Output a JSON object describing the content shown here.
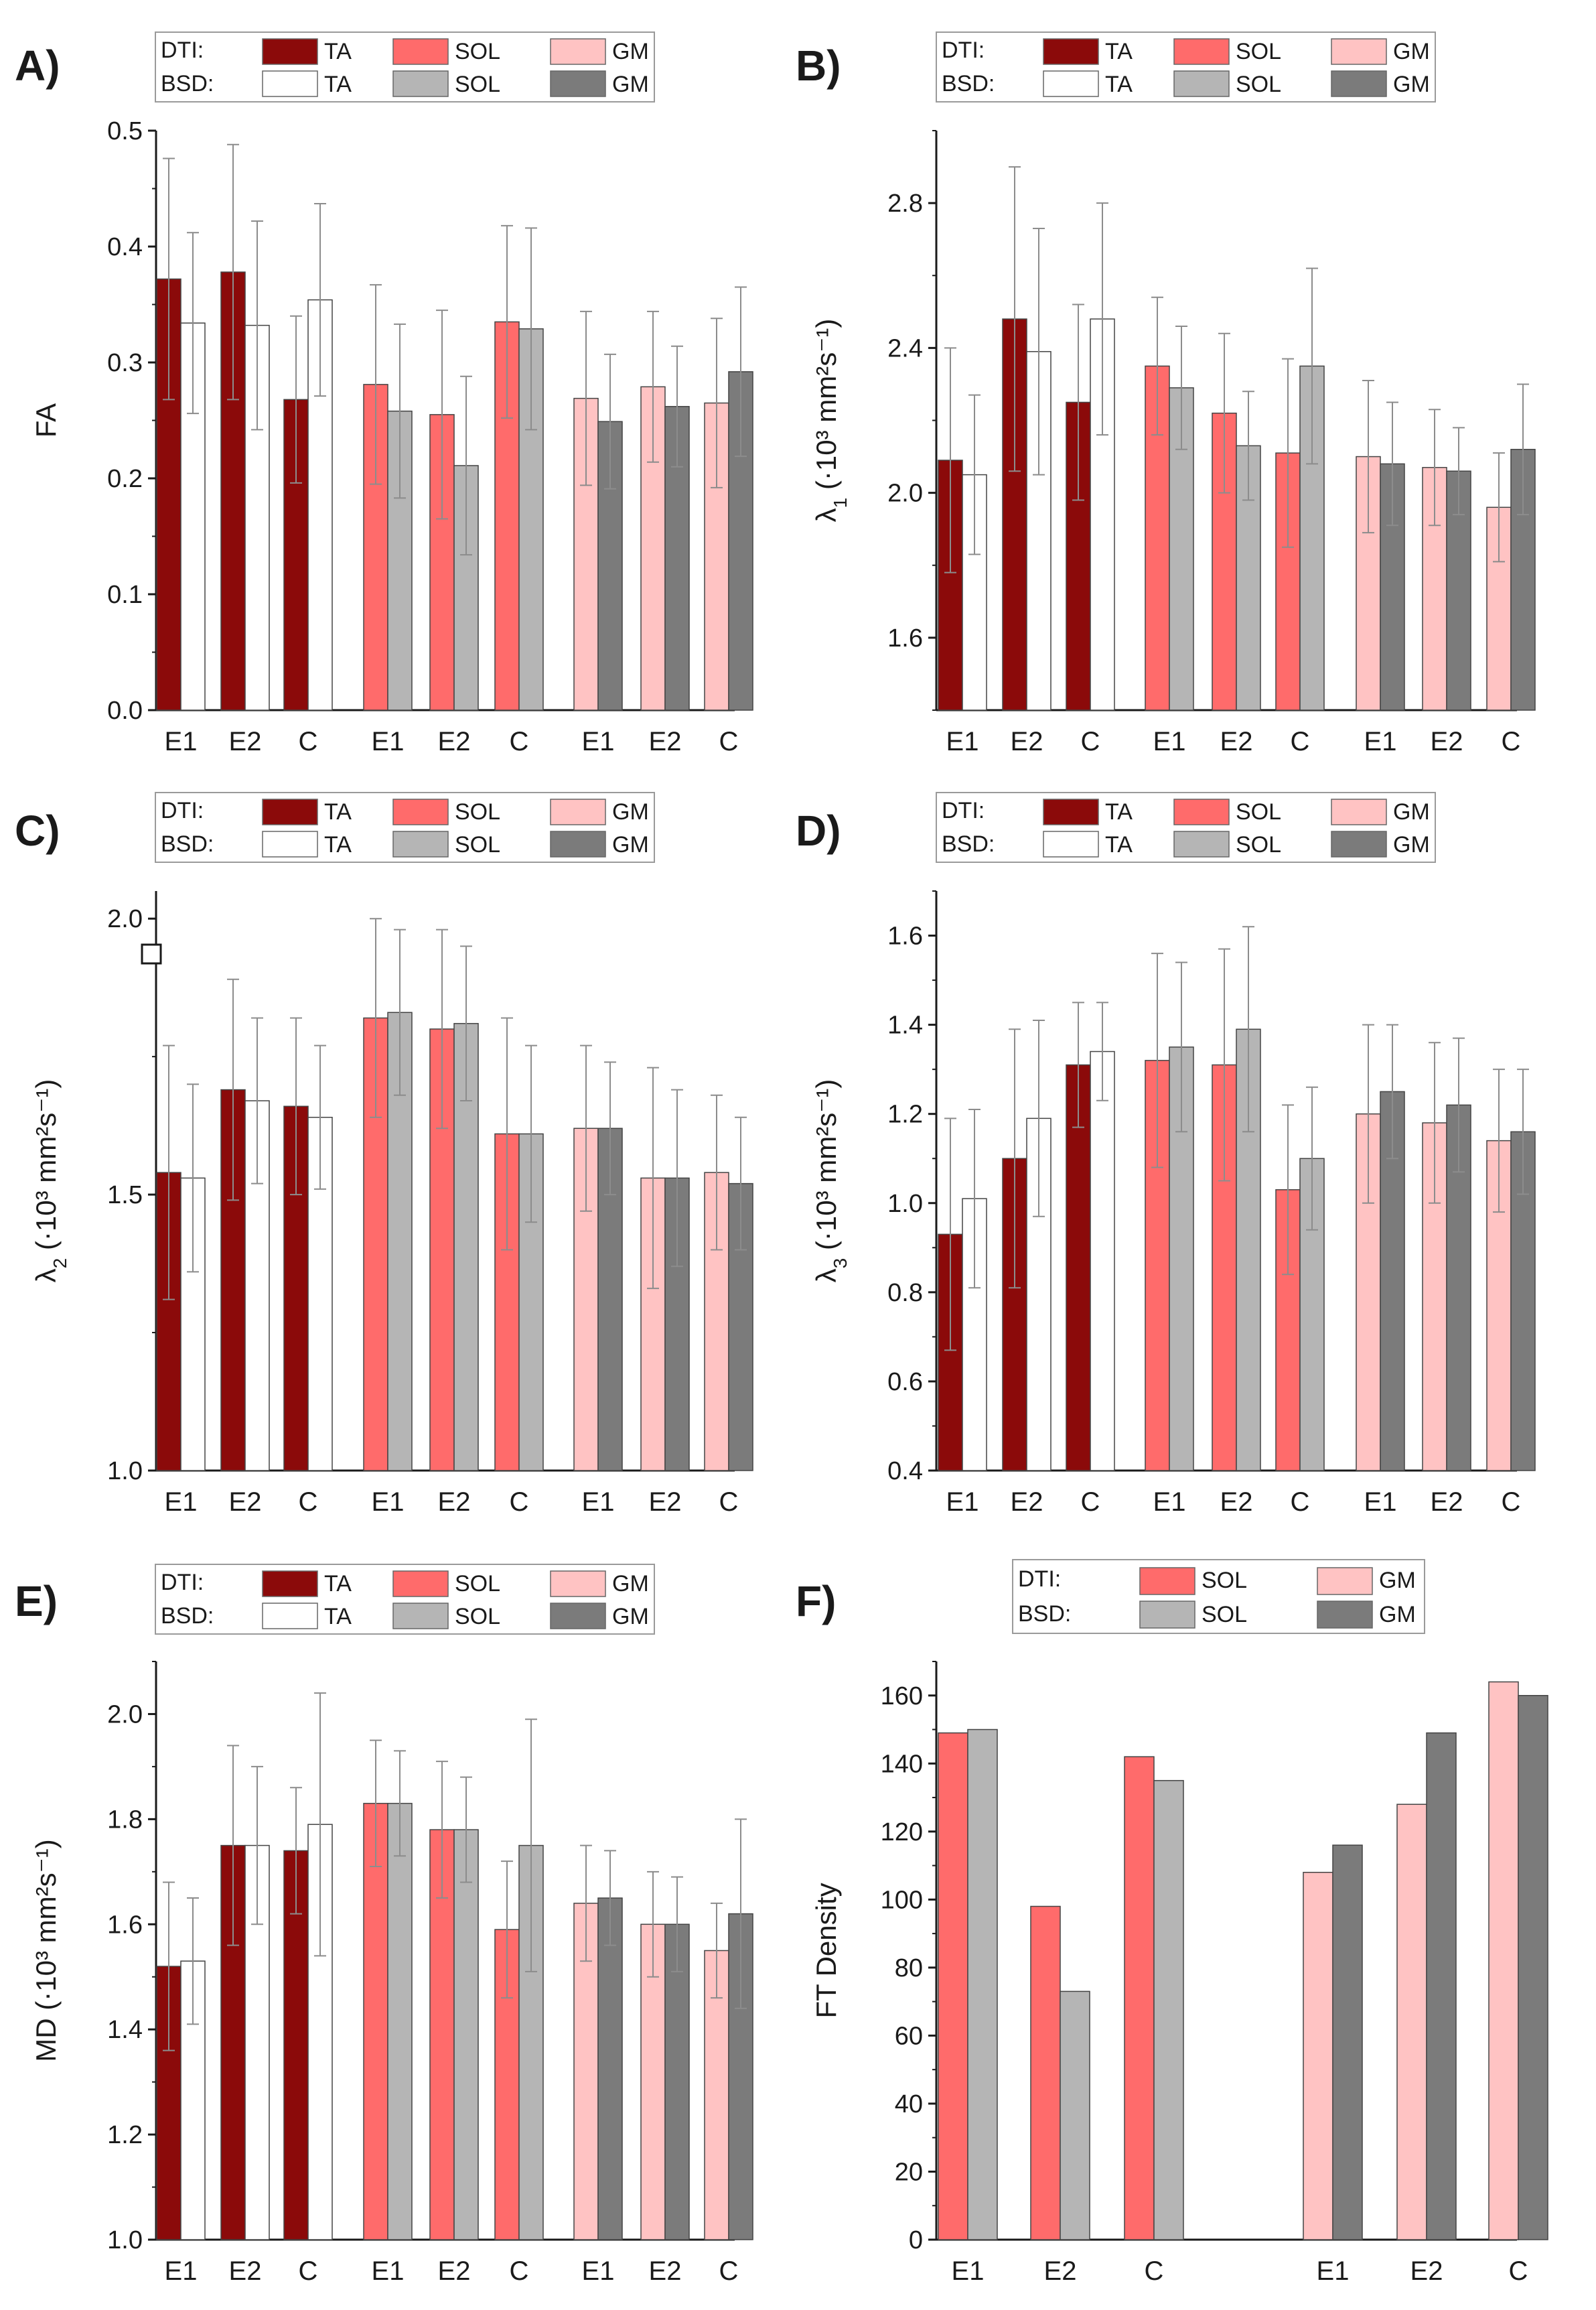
{
  "figure": {
    "panels": [
      "A)",
      "B)",
      "C)",
      "D)",
      "E)",
      "F)"
    ]
  },
  "colors": {
    "dti_ta": "#8b0a0a",
    "dti_sol": "#ff6b6b",
    "dti_gm": "#ffc3c3",
    "bsd_ta": "#ffffff",
    "bsd_sol": "#b5b5b5",
    "bsd_gm": "#7b7b7b",
    "error": "#8c8c8c",
    "axis": "#1a1a1a"
  },
  "legend": {
    "dti_label": "DTI:",
    "bsd_label": "BSD:",
    "ta": "TA",
    "sol": "SOL",
    "gm": "GM"
  },
  "chart_data": [
    {
      "id": "A",
      "panel_label": "A)",
      "type": "bar",
      "ylabel_main": "FA",
      "ylabel_sub": "",
      "ylabel_unit": "",
      "ylim": [
        0.0,
        0.5
      ],
      "ticks": [
        "0.0",
        "0.1",
        "0.2",
        "0.3",
        "0.4",
        "0.5"
      ],
      "categories": [
        "E1",
        "E2",
        "C",
        "E1",
        "E2",
        "C",
        "E1",
        "E2",
        "C"
      ],
      "groups": [
        {
          "muscle": "TA",
          "dti": [
            0.372,
            0.378,
            0.268
          ],
          "bsd": [
            0.334,
            0.332,
            0.354
          ],
          "dti_err": [
            0.104,
            0.11,
            0.072
          ],
          "bsd_err": [
            0.078,
            0.09,
            0.083
          ]
        },
        {
          "muscle": "SOL",
          "dti": [
            0.281,
            0.255,
            0.335
          ],
          "bsd": [
            0.258,
            0.211,
            0.329
          ],
          "dti_err": [
            0.086,
            0.09,
            0.083
          ],
          "bsd_err": [
            0.075,
            0.077,
            0.087
          ]
        },
        {
          "muscle": "GM",
          "dti": [
            0.269,
            0.279,
            0.265
          ],
          "bsd": [
            0.249,
            0.262,
            0.292
          ],
          "dti_err": [
            0.075,
            0.065,
            0.073
          ],
          "bsd_err": [
            0.058,
            0.052,
            0.073
          ]
        }
      ]
    },
    {
      "id": "B",
      "panel_label": "B)",
      "type": "bar",
      "ylabel_main": "λ",
      "ylabel_sub": "1",
      "ylabel_unit": " (·10³ mm²s⁻¹)",
      "ylim": [
        1.4,
        3.0
      ],
      "ticks": [
        "1.6",
        "2.0",
        "2.4",
        "2.8"
      ],
      "categories": [
        "E1",
        "E2",
        "C",
        "E1",
        "E2",
        "C",
        "E1",
        "E2",
        "C"
      ],
      "groups": [
        {
          "muscle": "TA",
          "dti": [
            2.09,
            2.48,
            2.25
          ],
          "bsd": [
            2.05,
            2.39,
            2.48
          ],
          "dti_err": [
            0.31,
            0.42,
            0.27
          ],
          "bsd_err": [
            0.22,
            0.34,
            0.32
          ]
        },
        {
          "muscle": "SOL",
          "dti": [
            2.35,
            2.22,
            2.11
          ],
          "bsd": [
            2.29,
            2.13,
            2.35
          ],
          "dti_err": [
            0.19,
            0.22,
            0.26
          ],
          "bsd_err": [
            0.17,
            0.15,
            0.27
          ]
        },
        {
          "muscle": "GM",
          "dti": [
            2.1,
            2.07,
            1.96
          ],
          "bsd": [
            2.08,
            2.06,
            2.12
          ],
          "dti_err": [
            0.21,
            0.16,
            0.15
          ],
          "bsd_err": [
            0.17,
            0.12,
            0.18
          ]
        }
      ]
    },
    {
      "id": "C",
      "panel_label": "C)",
      "type": "bar",
      "ylabel_main": "λ",
      "ylabel_sub": "2",
      "ylabel_unit": " (·10³ mm²s⁻¹)",
      "ylim": [
        1.0,
        2.05
      ],
      "ticks": [
        "1.0",
        "1.5",
        "2.0"
      ],
      "categories": [
        "E1",
        "E2",
        "C",
        "E1",
        "E2",
        "C",
        "E1",
        "E2",
        "C"
      ],
      "groups": [
        {
          "muscle": "TA",
          "dti": [
            1.54,
            1.69,
            1.66
          ],
          "bsd": [
            1.53,
            1.67,
            1.64
          ],
          "dti_err": [
            0.23,
            0.2,
            0.16
          ],
          "bsd_err": [
            0.17,
            0.15,
            0.13
          ]
        },
        {
          "muscle": "SOL",
          "dti": [
            1.82,
            1.8,
            1.61
          ],
          "bsd": [
            1.83,
            1.81,
            1.61
          ],
          "dti_err": [
            0.18,
            0.18,
            0.21
          ],
          "bsd_err": [
            0.15,
            0.14,
            0.16
          ]
        },
        {
          "muscle": "GM",
          "dti": [
            1.62,
            1.53,
            1.54
          ],
          "bsd": [
            1.62,
            1.53,
            1.52
          ],
          "dti_err": [
            0.15,
            0.2,
            0.14
          ],
          "bsd_err": [
            0.12,
            0.16,
            0.12
          ]
        }
      ]
    },
    {
      "id": "D",
      "panel_label": "D)",
      "type": "bar",
      "ylabel_main": "λ",
      "ylabel_sub": "3",
      "ylabel_unit": " (·10³ mm²s⁻¹)",
      "ylim": [
        0.4,
        1.7
      ],
      "ticks": [
        "0.4",
        "0.6",
        "0.8",
        "1.0",
        "1.2",
        "1.4",
        "1.6"
      ],
      "categories": [
        "E1",
        "E2",
        "C",
        "E1",
        "E2",
        "C",
        "E1",
        "E2",
        "C"
      ],
      "groups": [
        {
          "muscle": "TA",
          "dti": [
            0.93,
            1.1,
            1.31
          ],
          "bsd": [
            1.01,
            1.19,
            1.34
          ],
          "dti_err": [
            0.26,
            0.29,
            0.14
          ],
          "bsd_err": [
            0.2,
            0.22,
            0.11
          ]
        },
        {
          "muscle": "SOL",
          "dti": [
            1.32,
            1.31,
            1.03
          ],
          "bsd": [
            1.35,
            1.39,
            1.1
          ],
          "dti_err": [
            0.24,
            0.26,
            0.19
          ],
          "bsd_err": [
            0.19,
            0.23,
            0.16
          ]
        },
        {
          "muscle": "GM",
          "dti": [
            1.2,
            1.18,
            1.14
          ],
          "bsd": [
            1.25,
            1.22,
            1.16
          ],
          "dti_err": [
            0.2,
            0.18,
            0.16
          ],
          "bsd_err": [
            0.15,
            0.15,
            0.14
          ]
        }
      ]
    },
    {
      "id": "E",
      "panel_label": "E)",
      "type": "bar",
      "ylabel_main": "MD",
      "ylabel_sub": "",
      "ylabel_unit": " (·10³ mm²s⁻¹)",
      "ylim": [
        1.0,
        2.1
      ],
      "ticks": [
        "1.0",
        "1.2",
        "1.4",
        "1.6",
        "1.8",
        "2.0"
      ],
      "categories": [
        "E1",
        "E2",
        "C",
        "E1",
        "E2",
        "C",
        "E1",
        "E2",
        "C"
      ],
      "groups": [
        {
          "muscle": "TA",
          "dti": [
            1.52,
            1.75,
            1.74
          ],
          "bsd": [
            1.53,
            1.75,
            1.79
          ],
          "dti_err": [
            0.16,
            0.19,
            0.12
          ],
          "bsd_err": [
            0.12,
            0.15,
            0.25
          ]
        },
        {
          "muscle": "SOL",
          "dti": [
            1.83,
            1.78,
            1.59
          ],
          "bsd": [
            1.83,
            1.78,
            1.75
          ],
          "dti_err": [
            0.12,
            0.13,
            0.13
          ],
          "bsd_err": [
            0.1,
            0.1,
            0.24
          ]
        },
        {
          "muscle": "GM",
          "dti": [
            1.64,
            1.6,
            1.55
          ],
          "bsd": [
            1.65,
            1.6,
            1.62
          ],
          "dti_err": [
            0.11,
            0.1,
            0.09
          ],
          "bsd_err": [
            0.09,
            0.09,
            0.18
          ]
        }
      ]
    },
    {
      "id": "F",
      "panel_label": "F)",
      "type": "bar",
      "ylabel_main": "FT Density",
      "ylabel_sub": "",
      "ylabel_unit": "",
      "ylim": [
        0,
        170
      ],
      "ticks": [
        "0",
        "20",
        "40",
        "60",
        "80",
        "100",
        "120",
        "140",
        "160"
      ],
      "categories": [
        "E1",
        "E2",
        "C",
        "E1",
        "E2",
        "C"
      ],
      "groups": [
        {
          "muscle": "SOL",
          "dti": [
            149,
            98,
            142
          ],
          "bsd": [
            150,
            73,
            135
          ]
        },
        {
          "muscle": "GM",
          "dti": [
            108,
            128,
            164
          ],
          "bsd": [
            116,
            149,
            160
          ]
        }
      ]
    }
  ]
}
